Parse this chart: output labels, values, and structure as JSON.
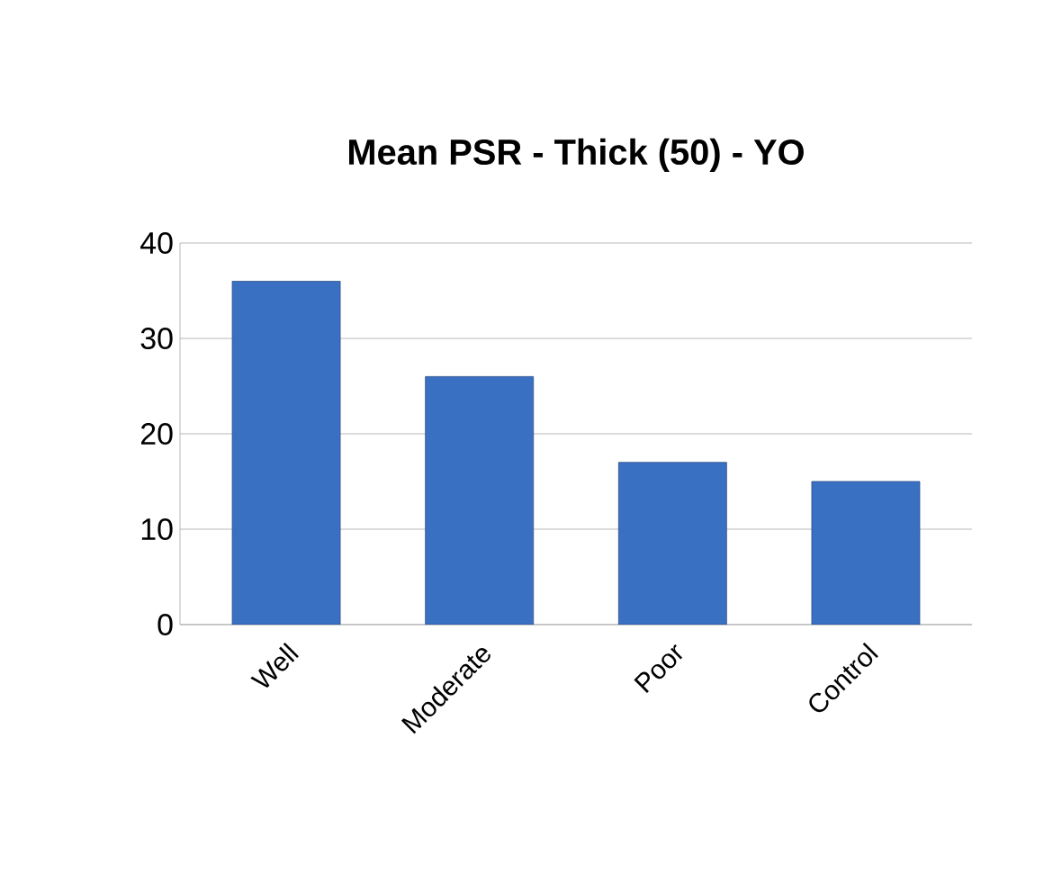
{
  "chart_data": {
    "type": "bar",
    "title": "Mean PSR - Thick (50) - YO",
    "categories": [
      "Well",
      "Moderate",
      "Poor",
      "Control"
    ],
    "values": [
      36,
      26,
      17,
      15
    ],
    "color": "#3a70c2",
    "ylim": [
      0,
      40
    ],
    "yticks": [
      0,
      10,
      20,
      30,
      40
    ],
    "grid": "y"
  }
}
